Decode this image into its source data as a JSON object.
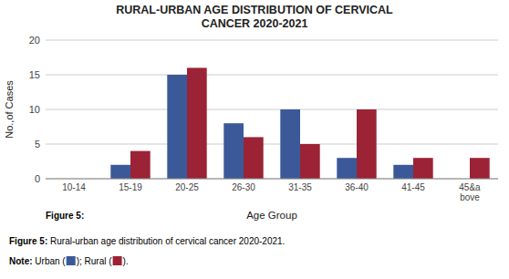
{
  "chart_data": {
    "type": "bar",
    "title": "RURAL-URBAN AGE DISTRIBUTION OF CERVICAL\nCANCER 2020-2021",
    "xlabel": "Age Group",
    "ylabel": "No.,of Cases",
    "categories": [
      "10-14",
      "15-19",
      "20-25",
      "26-30",
      "31-35",
      "36-40",
      "41-45",
      "45&a\nbove"
    ],
    "series": [
      {
        "color": "#3b5998",
        "values": [
          0,
          2,
          15,
          8,
          10,
          3,
          2,
          0
        ]
      },
      {
        "color": "#9b2335",
        "values": [
          0,
          4,
          16,
          6,
          5,
          10,
          3,
          3
        ]
      }
    ],
    "ylim": [
      0,
      20
    ],
    "yticks": [
      0,
      5,
      10,
      15,
      20
    ],
    "grid": true,
    "caption": {
      "label": "Figure 5:",
      "text": " Rural-urban age distribution of cervical cancer 2020-2021."
    },
    "note": {
      "label": "Note:",
      "parts": [
        " Urban (",
        "); Rural (",
        ")."
      ]
    }
  }
}
